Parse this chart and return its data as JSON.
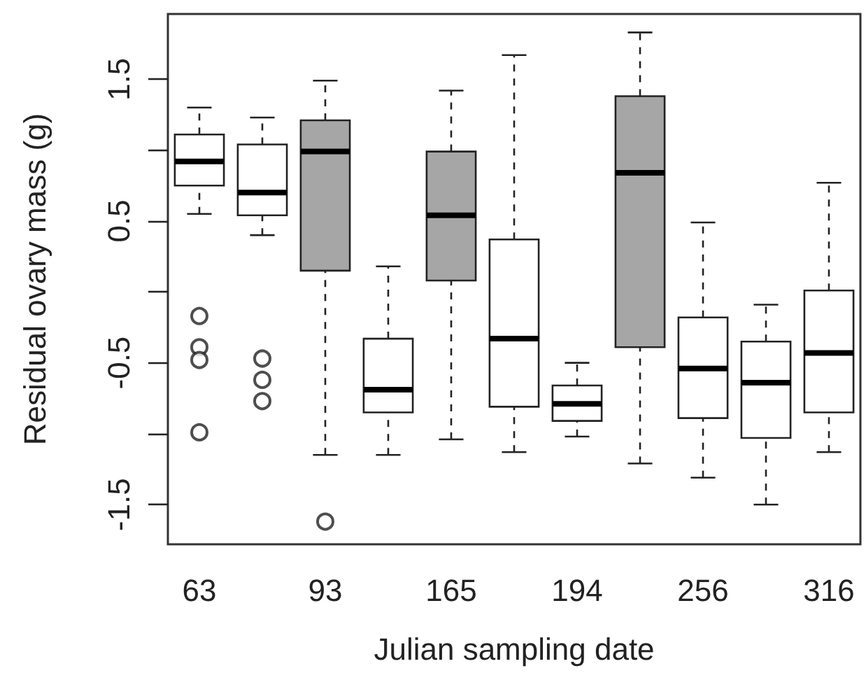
{
  "chart_data": {
    "type": "box",
    "xlabel": "Julian sampling date",
    "ylabel": "Residual ovary mass (g)",
    "categories": [
      "63",
      null,
      "93",
      null,
      "165",
      null,
      "194",
      null,
      "256",
      null,
      "316"
    ],
    "colors": [
      "#ffffff",
      "#ffffff",
      "#a6a6a6",
      "#ffffff",
      "#a6a6a6",
      "#ffffff",
      "#ffffff",
      "#a6a6a6",
      "#ffffff",
      "#ffffff",
      "#ffffff"
    ],
    "boxes": [
      {
        "low": 0.55,
        "q1": 0.75,
        "median": 0.92,
        "q3": 1.11,
        "high": 1.3,
        "outliers": [
          -0.17,
          -0.39,
          -0.48,
          -0.99
        ]
      },
      {
        "low": 0.4,
        "q1": 0.54,
        "median": 0.7,
        "q3": 1.04,
        "high": 1.23,
        "outliers": [
          -0.47,
          -0.62,
          -0.77
        ]
      },
      {
        "low": -1.15,
        "q1": 0.15,
        "median": 0.99,
        "q3": 1.21,
        "high": 1.49,
        "outliers": [
          -1.62
        ]
      },
      {
        "low": -1.15,
        "q1": -0.85,
        "median": -0.69,
        "q3": -0.33,
        "high": 0.18
      },
      {
        "low": -1.04,
        "q1": 0.08,
        "median": 0.54,
        "q3": 0.99,
        "high": 1.42
      },
      {
        "low": -1.13,
        "q1": -0.81,
        "median": -0.33,
        "q3": 0.37,
        "high": 1.67
      },
      {
        "low": -1.02,
        "q1": -0.91,
        "median": -0.79,
        "q3": -0.66,
        "high": -0.5
      },
      {
        "low": -1.21,
        "q1": -0.39,
        "median": 0.84,
        "q3": 1.38,
        "high": 1.83
      },
      {
        "low": -1.31,
        "q1": -0.89,
        "median": -0.54,
        "q3": -0.18,
        "high": 0.49
      },
      {
        "low": -1.5,
        "q1": -1.03,
        "median": -0.64,
        "q3": -0.35,
        "high": -0.09
      },
      {
        "low": -1.13,
        "q1": -0.85,
        "median": -0.43,
        "q3": 0.01,
        "high": 0.77
      }
    ],
    "ylim": [
      -1.78,
      1.96
    ],
    "yticks": [
      -1.5,
      {
        "value": -1,
        "label": null
      },
      -0.5,
      {
        "value": 0,
        "label": null
      },
      0.5,
      {
        "value": 1,
        "label": null
      },
      1.5
    ],
    "grid": false,
    "legend": false
  }
}
